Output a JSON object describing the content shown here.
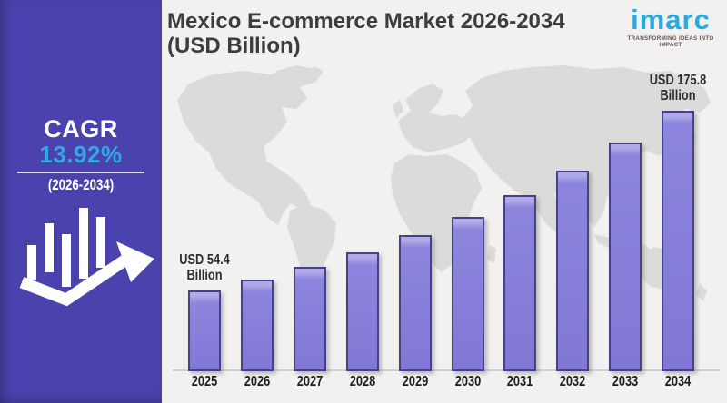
{
  "page": {
    "background": "#f2f1f0"
  },
  "sidebar": {
    "cagr_label": "CAGR",
    "cagr_value": "13.92%",
    "period": "(2026-2034)",
    "bg_color": "#4a43ae",
    "accent_color": "#2fa9e1",
    "icon": "growth-bars-arrow-icon"
  },
  "header": {
    "title_line1": "Mexico E-commerce Market 2026-2034",
    "title_line2": "(USD Billion)"
  },
  "logo": {
    "brand": "imarc",
    "tagline": "TRANSFORMING IDEAS INTO IMPACT",
    "brand_color": "#29a9e0"
  },
  "chart_data": {
    "type": "bar",
    "title": "Mexico E-commerce Market 2026-2034 (USD Billion)",
    "unit": "USD Billion",
    "categories": [
      "2025",
      "2026",
      "2027",
      "2028",
      "2029",
      "2030",
      "2031",
      "2032",
      "2033",
      "2034"
    ],
    "values": [
      54.4,
      62.0,
      70.6,
      80.4,
      91.6,
      104.3,
      118.8,
      135.4,
      154.3,
      175.8
    ],
    "cagr_pct": 13.92,
    "ylim": [
      0,
      190
    ],
    "grid": false,
    "legend": "none",
    "bar_fill": "#8078d4",
    "bar_highlight": "#b0aae9",
    "bar_border": "#474185",
    "background_motif": "world-map",
    "annotations": [
      {
        "category": "2025",
        "line1": "USD 54.4",
        "line2": "Billion"
      },
      {
        "category": "2034",
        "line1": "USD 175.8",
        "line2": "Billion"
      }
    ]
  }
}
